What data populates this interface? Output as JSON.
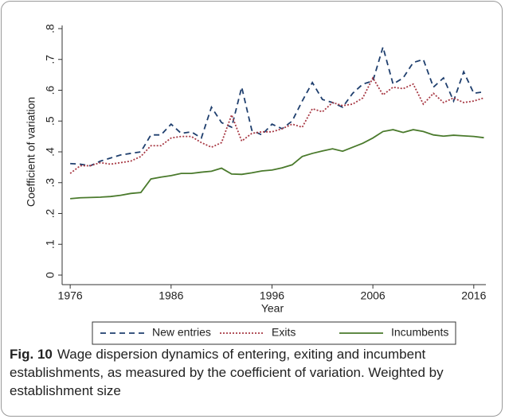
{
  "chart_data": {
    "type": "line",
    "xlabel": "Year",
    "ylabel": "Coefficient of variation",
    "x": [
      1976,
      1977,
      1978,
      1979,
      1980,
      1981,
      1982,
      1983,
      1984,
      1985,
      1986,
      1987,
      1988,
      1989,
      1990,
      1991,
      1992,
      1993,
      1994,
      1995,
      1996,
      1997,
      1998,
      1999,
      2000,
      2001,
      2002,
      2003,
      2004,
      2005,
      2006,
      2007,
      2008,
      2009,
      2010,
      2011,
      2012,
      2013,
      2014,
      2015,
      2016,
      2017
    ],
    "xlim": [
      1975.2,
      2017.2
    ],
    "xticks": [
      1976,
      1986,
      1996,
      2006,
      2016
    ],
    "ylim": [
      0,
      0.8
    ],
    "yticks": [
      0,
      {
        "value": 0.1,
        "label": ".1"
      },
      {
        "value": 0.2,
        "label": ".2"
      },
      {
        "value": 0.3,
        "label": ".3"
      },
      {
        "value": 0.4,
        "label": ".4"
      },
      {
        "value": 0.5,
        "label": ".5"
      },
      {
        "value": 0.6,
        "label": ".6"
      },
      {
        "value": 0.7,
        "label": ".7"
      },
      {
        "value": 0.8,
        "label": ".8"
      }
    ],
    "series": [
      {
        "name": "New entries",
        "color": "#1f3f6e",
        "dash": "7,5",
        "values": [
          0.362,
          0.36,
          0.355,
          0.37,
          0.38,
          0.39,
          0.395,
          0.4,
          0.455,
          0.455,
          0.49,
          0.46,
          0.465,
          0.445,
          0.545,
          0.495,
          0.48,
          0.61,
          0.47,
          0.455,
          0.49,
          0.475,
          0.5,
          0.565,
          0.625,
          0.57,
          0.56,
          0.545,
          0.59,
          0.62,
          0.63,
          0.74,
          0.62,
          0.64,
          0.69,
          0.7,
          0.61,
          0.64,
          0.565,
          0.66,
          0.59,
          0.595
        ]
      },
      {
        "name": "Exits",
        "color": "#a83a45",
        "dash": "2,2",
        "values": [
          0.33,
          0.355,
          0.355,
          0.365,
          0.36,
          0.365,
          0.37,
          0.385,
          0.42,
          0.42,
          0.445,
          0.45,
          0.45,
          0.43,
          0.415,
          0.43,
          0.52,
          0.435,
          0.46,
          0.465,
          0.465,
          0.475,
          0.49,
          0.48,
          0.54,
          0.53,
          0.56,
          0.55,
          0.555,
          0.575,
          0.64,
          0.585,
          0.61,
          0.605,
          0.62,
          0.555,
          0.59,
          0.56,
          0.575,
          0.56,
          0.565,
          0.575
        ]
      },
      {
        "name": "Incumbents",
        "color": "#4a7a2c",
        "dash": "",
        "values": [
          0.248,
          0.251,
          0.252,
          0.253,
          0.255,
          0.259,
          0.265,
          0.268,
          0.312,
          0.318,
          0.323,
          0.33,
          0.33,
          0.334,
          0.337,
          0.347,
          0.328,
          0.327,
          0.332,
          0.338,
          0.341,
          0.348,
          0.358,
          0.385,
          0.395,
          0.403,
          0.41,
          0.402,
          0.415,
          0.428,
          0.445,
          0.466,
          0.472,
          0.463,
          0.472,
          0.466,
          0.455,
          0.451,
          0.454,
          0.452,
          0.45,
          0.446
        ]
      }
    ],
    "caption": {
      "label": "Fig. 10",
      "text": "Wage dispersion dynamics of entering, exiting and incumbent establishments, as measured by the coefficient of variation. Weighted by establishment size"
    }
  }
}
